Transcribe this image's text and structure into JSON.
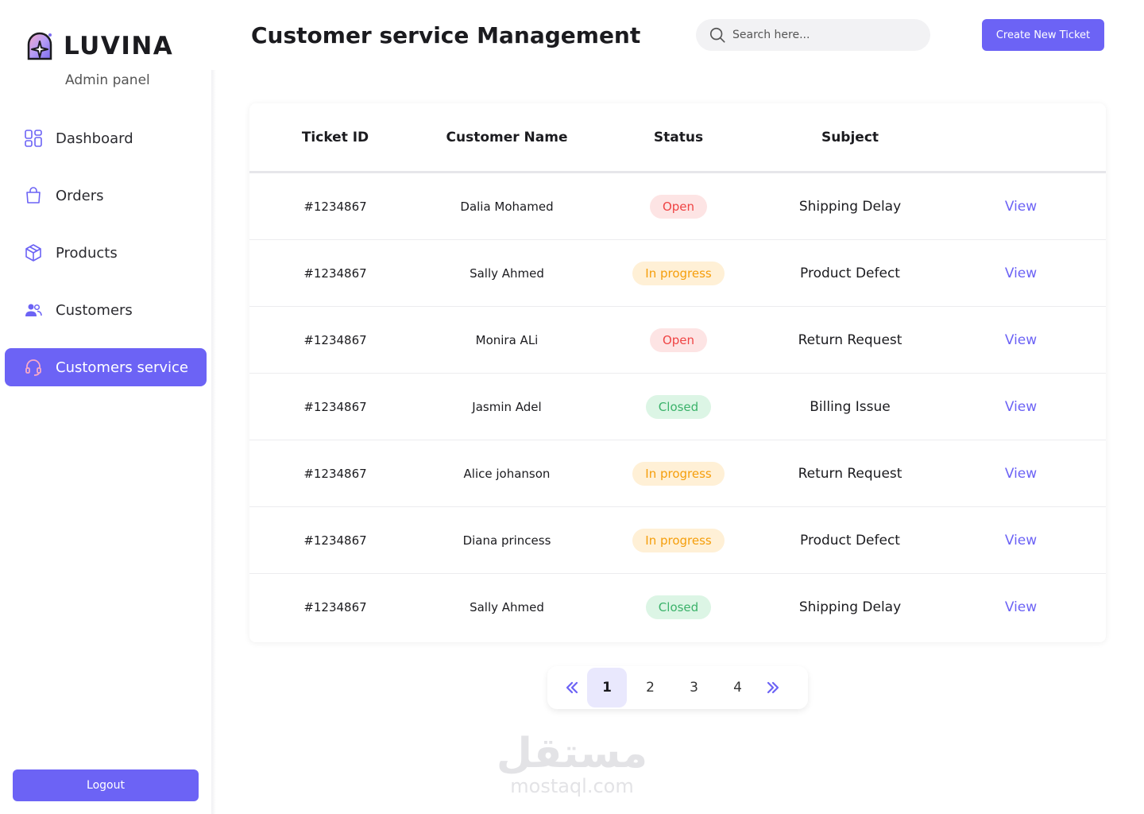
{
  "brand": {
    "name": "LUVINA",
    "subtitle": "Admin panel"
  },
  "sidebar": {
    "items": [
      {
        "label": "Dashboard",
        "icon": "dashboard-grid-icon",
        "active": false
      },
      {
        "label": "Orders",
        "icon": "shopping-bag-icon",
        "active": false
      },
      {
        "label": "Products",
        "icon": "box-icon",
        "active": false
      },
      {
        "label": "Customers",
        "icon": "users-icon",
        "active": false
      },
      {
        "label": "Customers service",
        "icon": "headset-icon",
        "active": true
      }
    ],
    "logout_label": "Logout"
  },
  "header": {
    "title": "Customer service Management",
    "search_placeholder": "Search here...",
    "create_label": "Create New Ticket"
  },
  "table": {
    "columns": [
      "Ticket ID",
      "Customer Name",
      "Status",
      "Subject"
    ],
    "view_label": "View",
    "rows": [
      {
        "id": "#1234867",
        "name": "Dalia Mohamed",
        "status": "Open",
        "status_type": "open",
        "subject": "Shipping Delay"
      },
      {
        "id": "#1234867",
        "name": "Sally Ahmed",
        "status": "In progress",
        "status_type": "progress",
        "subject": "Product Defect"
      },
      {
        "id": "#1234867",
        "name": "Monira ALi",
        "status": "Open",
        "status_type": "open",
        "subject": "Return Request"
      },
      {
        "id": "#1234867",
        "name": "Jasmin Adel",
        "status": "Closed",
        "status_type": "closed",
        "subject": "Billing Issue"
      },
      {
        "id": "#1234867",
        "name": "Alice johanson",
        "status": "In progress",
        "status_type": "progress",
        "subject": "Return Request"
      },
      {
        "id": "#1234867",
        "name": "Diana princess",
        "status": "In progress",
        "status_type": "progress",
        "subject": "Product Defect"
      },
      {
        "id": "#1234867",
        "name": "Sally Ahmed",
        "status": "Closed",
        "status_type": "closed",
        "subject": "Shipping Delay"
      }
    ]
  },
  "pagination": {
    "pages": [
      "1",
      "2",
      "3",
      "4"
    ],
    "current": "1"
  },
  "watermark": {
    "arabic": "مستقل",
    "latin": "mostaql.com"
  },
  "colors": {
    "accent": "#6c63f5",
    "open": "#ef4444",
    "progress": "#f59e0b",
    "closed": "#3bb26a"
  }
}
